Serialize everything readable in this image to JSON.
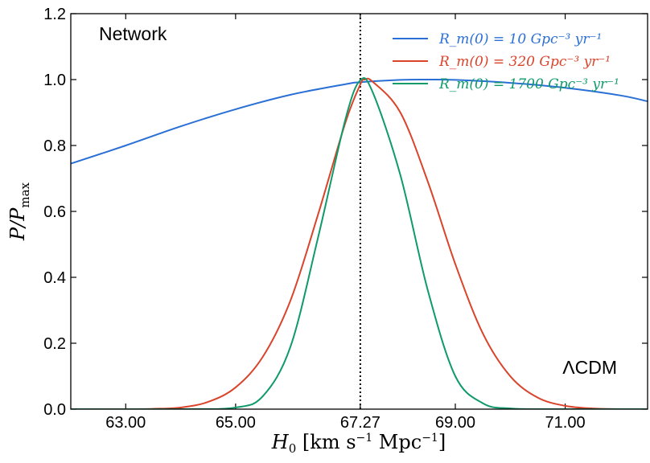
{
  "chart_data": {
    "type": "line",
    "title": "",
    "xlabel": "H₀ [km s⁻¹ Mpc⁻¹]",
    "ylabel": "P/P_max",
    "xlim": [
      62.0,
      72.5
    ],
    "ylim": [
      0.0,
      1.2
    ],
    "x_ticks": [
      63.0,
      65.0,
      67.27,
      69.0,
      71.0
    ],
    "x_tick_labels": [
      "63.00",
      "65.00",
      "67.27",
      "69.00",
      "71.00"
    ],
    "y_ticks": [
      0.0,
      0.2,
      0.4,
      0.6,
      0.8,
      1.0,
      1.2
    ],
    "y_tick_labels": [
      "0.0",
      "0.2",
      "0.4",
      "0.6",
      "0.8",
      "1.0",
      "1.2"
    ],
    "reference_line": {
      "x": 67.27,
      "style": "dotted",
      "color": "#000000"
    },
    "annotations": {
      "top_left": "Network",
      "bottom_right": "ΛCDM"
    },
    "legend_position": "top-right",
    "series": [
      {
        "name": "R_m(0) = 10 Gpc⁻³ yr⁻¹",
        "color": "#2a6fd6",
        "x": [
          62.0,
          63.0,
          64.0,
          65.0,
          66.0,
          67.0,
          67.27,
          68.0,
          68.5,
          69.0,
          70.0,
          71.0,
          72.0,
          72.5
        ],
        "y": [
          0.745,
          0.8,
          0.858,
          0.91,
          0.954,
          0.986,
          0.992,
          0.999,
          1.0,
          0.999,
          0.99,
          0.975,
          0.952,
          0.934
        ]
      },
      {
        "name": "R_m(0) = 320 Gpc⁻³ yr⁻¹",
        "color": "#d9442b",
        "x": [
          62.0,
          63.0,
          63.5,
          64.0,
          64.5,
          65.0,
          65.5,
          66.0,
          66.5,
          67.0,
          67.27,
          67.35,
          67.5,
          68.0,
          68.5,
          69.0,
          69.5,
          70.0,
          70.5,
          71.0,
          71.5,
          72.0,
          72.5
        ],
        "y": [
          0.0,
          0.0,
          0.001,
          0.005,
          0.022,
          0.066,
          0.16,
          0.33,
          0.59,
          0.87,
          0.985,
          1.0,
          0.993,
          0.9,
          0.69,
          0.44,
          0.23,
          0.1,
          0.035,
          0.01,
          0.002,
          0.0,
          0.0
        ]
      },
      {
        "name": "R_m(0) = 1700 Gpc⁻³ yr⁻¹",
        "color": "#0f9a6a",
        "x": [
          62.0,
          64.0,
          65.0,
          65.5,
          66.0,
          66.5,
          67.0,
          67.27,
          67.5,
          68.0,
          68.5,
          69.0,
          69.5,
          70.0,
          71.0,
          72.5
        ],
        "y": [
          0.0,
          0.0,
          0.005,
          0.04,
          0.19,
          0.52,
          0.88,
          0.998,
          0.96,
          0.71,
          0.36,
          0.1,
          0.018,
          0.002,
          0.0,
          0.0
        ]
      }
    ]
  }
}
